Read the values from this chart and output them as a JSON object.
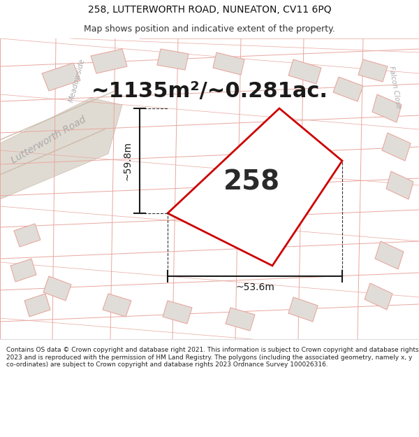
{
  "title_line1": "258, LUTTERWORTH ROAD, NUNEATON, CV11 6PQ",
  "title_line2": "Map shows position and indicative extent of the property.",
  "area_text": "~1135m²/~0.281ac.",
  "label_text": "258",
  "dim_width": "~53.6m",
  "dim_height": "~59.8m",
  "footer_text": "Contains OS data © Crown copyright and database right 2021. This information is subject to Crown copyright and database rights 2023 and is reproduced with the permission of HM Land Registry. The polygons (including the associated geometry, namely x, y co-ordinates) are subject to Crown copyright and database rights 2023 Ordnance Survey 100026316.",
  "bg_color": "#f2f0ed",
  "white_bg": "#ffffff",
  "plot_outline_color": "#cc0000",
  "plot_fill_color": "#ffffff",
  "surr_fill": "#e0ddd8",
  "surr_edge": "#e8a8a0",
  "road_label_color": "#aaaaaa",
  "street_label": "Lutterworth Road",
  "side_label": "Meadowside",
  "corner_label": "Falcon Close",
  "title_fontsize": 10,
  "subtitle_fontsize": 9,
  "area_fontsize": 22,
  "label_fontsize": 28,
  "dim_fontsize": 10,
  "footer_fontsize": 6.5
}
